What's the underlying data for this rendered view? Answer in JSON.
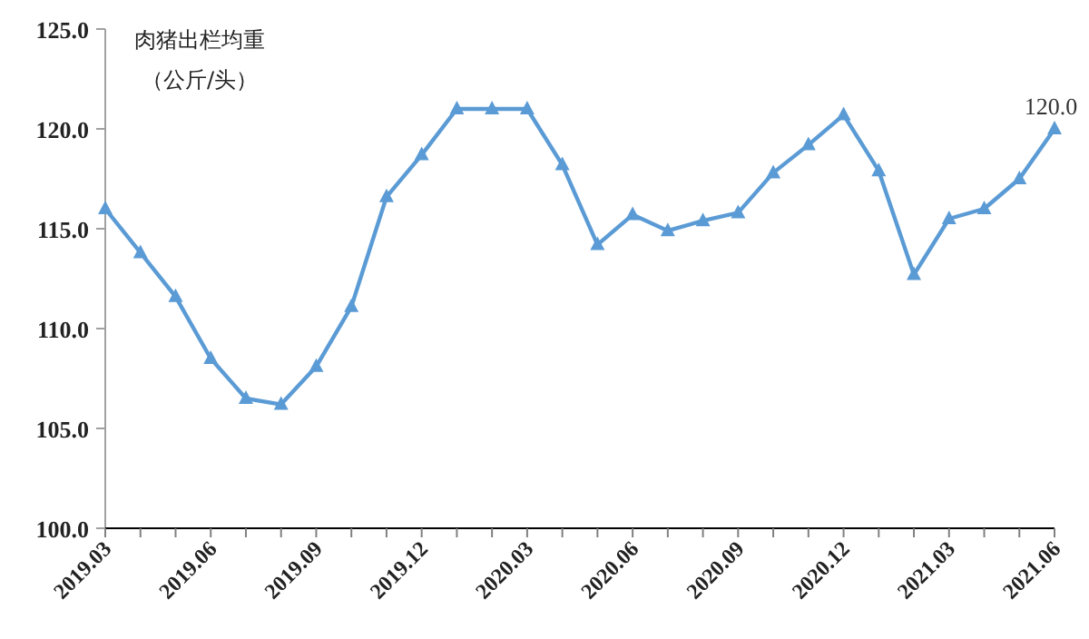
{
  "chart_data": {
    "type": "line",
    "title": "肉猪出栏均重",
    "subtitle": "（公斤/头）",
    "categories": [
      "2019.03",
      null,
      null,
      "2019.06",
      null,
      null,
      "2019.09",
      null,
      null,
      "2019.12",
      null,
      null,
      "2020.03",
      null,
      null,
      "2020.06",
      null,
      null,
      "2020.09",
      null,
      null,
      "2020.12",
      null,
      null,
      "2021.03",
      null,
      null,
      "2021.06"
    ],
    "series": [
      {
        "color": "#5b9bd5",
        "values": [
          116.0,
          113.8,
          111.6,
          108.5,
          106.5,
          106.2,
          108.1,
          111.1,
          116.6,
          118.7,
          121.0,
          121.0,
          121.0,
          118.2,
          114.2,
          115.7,
          114.9,
          115.4,
          115.8,
          117.8,
          119.2,
          120.7,
          117.9,
          112.7,
          115.5,
          116.0,
          117.5,
          120.0
        ],
        "value_labels": [
          null,
          null,
          null,
          null,
          null,
          null,
          null,
          null,
          null,
          null,
          null,
          null,
          null,
          null,
          null,
          null,
          null,
          null,
          null,
          null,
          null,
          null,
          null,
          null,
          null,
          null,
          null,
          "120.0"
        ]
      }
    ],
    "ylim": [
      100,
      125
    ],
    "yticks": [
      {
        "value": 100,
        "label": "100.0"
      },
      {
        "value": 105,
        "label": "105.0"
      },
      {
        "value": 110,
        "label": "110.0"
      },
      {
        "value": 115,
        "label": "115.0"
      },
      {
        "value": 120,
        "label": "120.0"
      },
      {
        "value": 125,
        "label": "125.0"
      }
    ],
    "grid": false,
    "marker": "triangle",
    "line_style": "solid"
  }
}
